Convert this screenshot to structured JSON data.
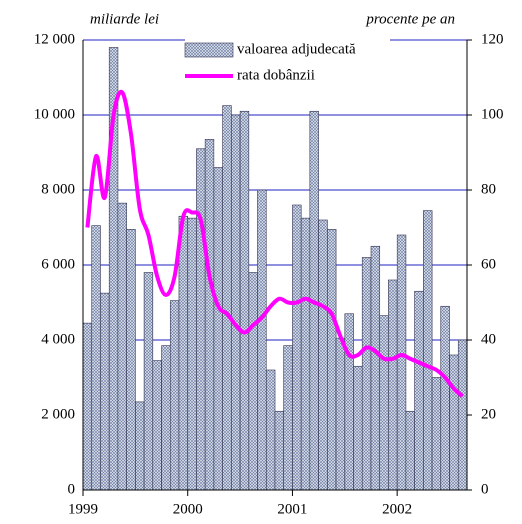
{
  "chart_data": {
    "type": "bar_line",
    "y_label": "miliarde lei",
    "y2_label": "procente pe an",
    "x": [
      1999.042,
      1999.125,
      1999.208,
      1999.292,
      1999.375,
      1999.458,
      1999.542,
      1999.625,
      1999.708,
      1999.792,
      1999.875,
      1999.958,
      2000.042,
      2000.125,
      2000.208,
      2000.292,
      2000.375,
      2000.458,
      2000.542,
      2000.625,
      2000.708,
      2000.792,
      2000.875,
      2000.958,
      2001.042,
      2001.125,
      2001.208,
      2001.292,
      2001.375,
      2001.458,
      2001.542,
      2001.625,
      2001.708,
      2001.792,
      2001.875,
      2001.958,
      2002.042,
      2002.125,
      2002.208,
      2002.292,
      2002.375,
      2002.458,
      2002.542,
      2002.625
    ],
    "series": [
      {
        "name": "valoarea adjudecată",
        "type": "bar",
        "color": "#b8c4d8",
        "values": [
          4450,
          7050,
          5250,
          11800,
          7650,
          6950,
          2350,
          5800,
          3450,
          3850,
          5050,
          7300,
          7250,
          9100,
          9350,
          8600,
          10250,
          10000,
          10100,
          5800,
          8000,
          3200,
          2100,
          3850,
          7600,
          7250,
          10100,
          7200,
          6950,
          4050,
          4700,
          3300,
          6200,
          6500,
          4650,
          5600,
          6800,
          2100,
          5300,
          7450,
          3000,
          4900,
          3600,
          4000
        ]
      },
      {
        "name": "rata dobânzii",
        "type": "line",
        "axis": "y2",
        "color": "#ff00ff",
        "values": [
          70,
          89,
          78,
          100,
          106,
          95,
          75,
          68,
          57,
          52,
          57,
          73,
          74,
          72,
          57,
          49,
          47,
          44,
          42,
          44,
          46,
          49,
          51,
          50,
          50,
          51,
          50,
          49,
          47,
          41,
          36,
          36,
          38,
          37,
          35,
          35,
          36,
          35,
          34,
          33,
          32,
          30,
          27,
          25
        ]
      }
    ],
    "xlim": [
      1999,
      2002.667
    ],
    "xticks": [
      1999,
      2000,
      2001,
      2002
    ],
    "ylim": [
      0,
      12000
    ],
    "yticks": [
      0,
      {
        "value": 2000,
        "label": "2 000"
      },
      {
        "value": 4000,
        "label": "4 000"
      },
      {
        "value": 6000,
        "label": "6 000"
      },
      {
        "value": 8000,
        "label": "8 000"
      },
      {
        "value": 10000,
        "label": "10 000"
      },
      {
        "value": 12000,
        "label": "12 000"
      }
    ],
    "y2lim": [
      0,
      120
    ],
    "y2ticks": [
      0,
      20,
      40,
      60,
      80,
      100,
      120
    ],
    "grid": true,
    "grid_color": "#2020c0",
    "legend": "top"
  }
}
